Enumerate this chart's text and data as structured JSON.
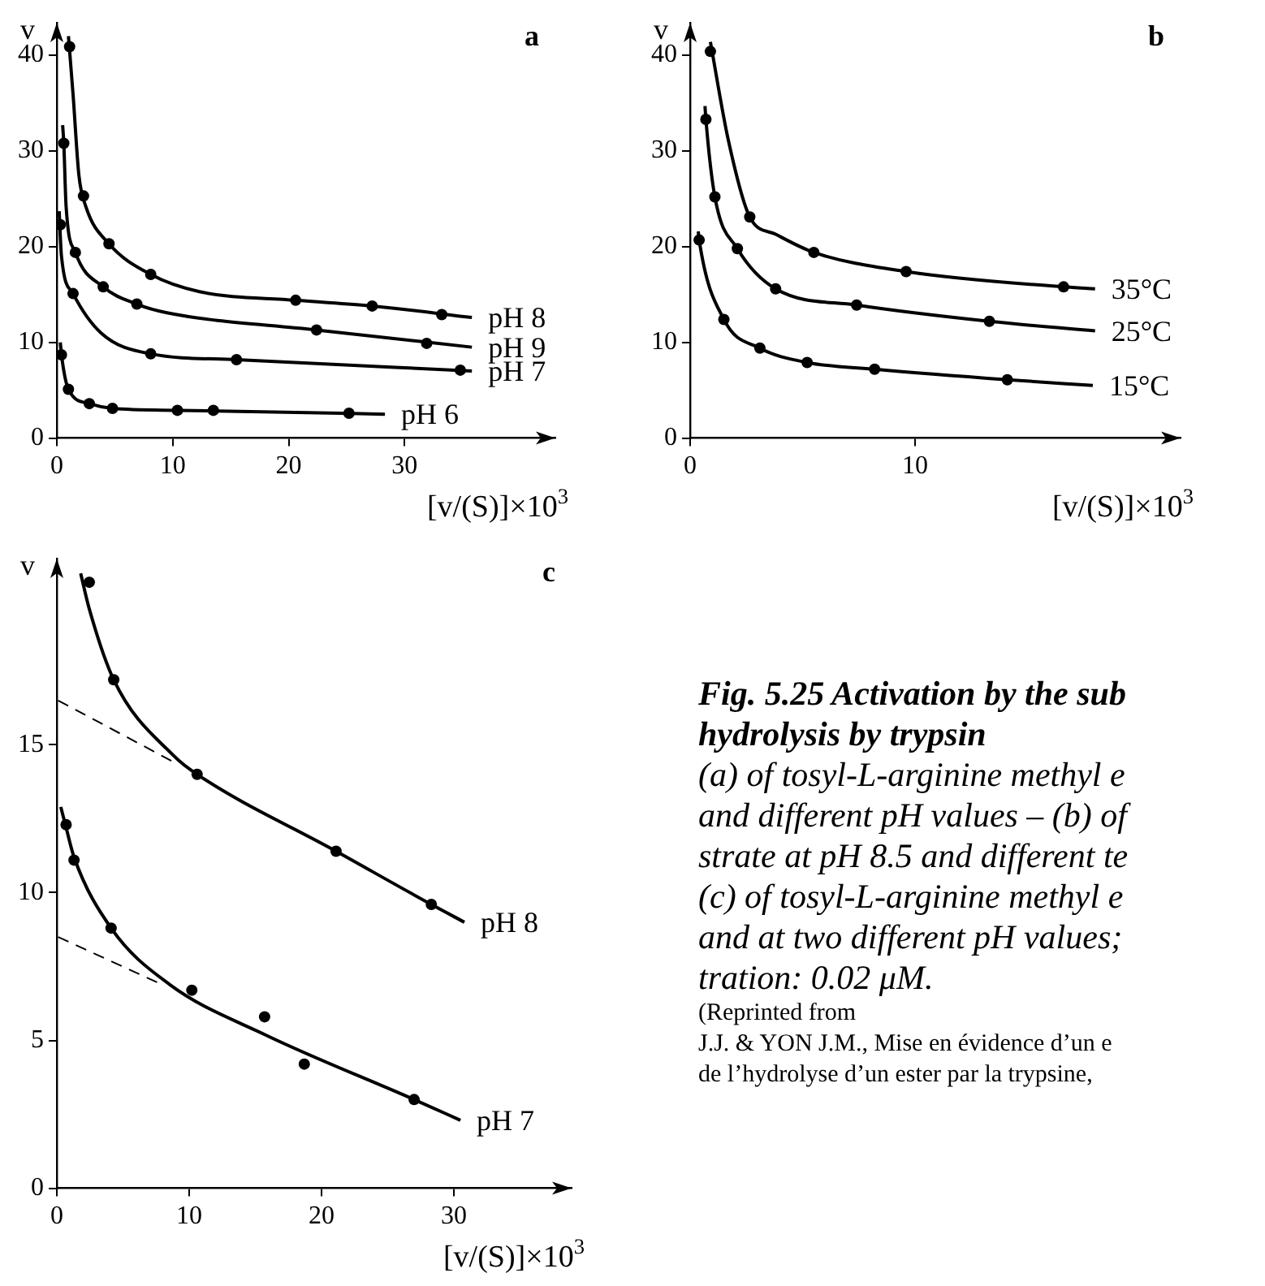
{
  "chart_data": [
    {
      "type": "line",
      "title": "a",
      "xlabel": "[v/(S)]×10$^{3}$",
      "ylabel": "v",
      "xlim": [
        0,
        43
      ],
      "ylim": [
        0,
        43.4
      ],
      "xticks": [
        0,
        10,
        20,
        30
      ],
      "yticks": [
        0,
        10,
        20,
        30,
        40
      ],
      "grid": false,
      "legend": false,
      "series": [
        {
          "name": "pH 8",
          "type": "line",
          "marker": "none",
          "color": "#000000",
          "x": [
            1.0,
            1.4,
            1.9,
            2.5,
            4.5,
            8.1,
            12.3,
            20.6,
            27.2,
            35.8
          ],
          "values": [
            42.0,
            35.9,
            27.5,
            24.2,
            20.3,
            17.1,
            15.3,
            14.4,
            13.8,
            12.6
          ]
        },
        {
          "type": "scatter",
          "marker": "circle",
          "color": "#000000",
          "x": [
            1.1,
            2.3,
            4.5,
            8.1,
            20.6,
            27.2,
            33.2
          ],
          "values": [
            40.9,
            25.3,
            20.3,
            17.1,
            14.4,
            13.8,
            12.9
          ]
        },
        {
          "name": "pH 9",
          "type": "line",
          "marker": "none",
          "color": "#000000",
          "x": [
            0.5,
            0.6,
            0.8,
            1.6,
            4.0,
            6.9,
            9.5,
            22.4,
            35.8
          ],
          "values": [
            32.7,
            30.8,
            24.2,
            19.4,
            15.8,
            14.0,
            13.1,
            11.3,
            9.5
          ]
        },
        {
          "type": "scatter",
          "marker": "circle",
          "color": "#000000",
          "x": [
            0.6,
            1.6,
            4.0,
            6.9,
            22.4,
            31.9
          ],
          "values": [
            30.8,
            19.4,
            15.8,
            14.0,
            11.3,
            9.9
          ]
        },
        {
          "name": "pH 7",
          "type": "line",
          "marker": "none",
          "color": "#000000",
          "x": [
            0.2,
            0.4,
            1.4,
            3.8,
            8.1,
            15.5,
            35.8
          ],
          "values": [
            23.7,
            19.0,
            15.1,
            11.0,
            8.8,
            8.2,
            7.0
          ]
        },
        {
          "type": "scatter",
          "marker": "circle",
          "color": "#000000",
          "x": [
            0.3,
            1.4,
            8.1,
            15.5,
            34.8
          ],
          "values": [
            22.3,
            15.1,
            8.8,
            8.2,
            7.1
          ]
        },
        {
          "name": "pH 6",
          "type": "line",
          "marker": "none",
          "color": "#000000",
          "x": [
            0.3,
            0.4,
            1.0,
            2.8,
            4.8,
            10.4,
            28.3
          ],
          "values": [
            10.0,
            8.7,
            5.1,
            3.6,
            3.1,
            2.9,
            2.5
          ]
        },
        {
          "type": "scatter",
          "marker": "circle",
          "color": "#000000",
          "x": [
            0.4,
            1.0,
            2.8,
            4.8,
            10.4,
            13.5,
            25.2
          ],
          "values": [
            8.7,
            5.1,
            3.6,
            3.1,
            2.9,
            2.9,
            2.6
          ]
        }
      ]
    },
    {
      "type": "line",
      "title": "b",
      "xlabel": "[v/(S)]×10$^{3}$",
      "ylabel": "v",
      "xlim": [
        0,
        21.8
      ],
      "ylim": [
        0,
        43.4
      ],
      "xticks": [
        0,
        10
      ],
      "yticks": [
        0,
        10,
        20,
        30,
        40
      ],
      "grid": false,
      "legend": false,
      "series": [
        {
          "name": "35°C",
          "type": "line",
          "marker": "none",
          "color": "#000000",
          "x": [
            0.9,
            1.7,
            2.65,
            3.8,
            5.5,
            9.6,
            16.6,
            18.0
          ],
          "values": [
            41.4,
            31.1,
            23.1,
            21.3,
            19.4,
            17.4,
            15.8,
            15.6
          ]
        },
        {
          "type": "scatter",
          "marker": "circle",
          "color": "#000000",
          "x": [
            0.9,
            2.65,
            5.5,
            9.6,
            16.6
          ],
          "values": [
            40.4,
            23.1,
            19.4,
            17.4,
            15.8
          ]
        },
        {
          "name": "25°C",
          "type": "line",
          "marker": "none",
          "color": "#000000",
          "x": [
            0.66,
            0.7,
            1.1,
            2.1,
            3.8,
            7.4,
            13.3,
            18.0
          ],
          "values": [
            34.7,
            33.3,
            25.2,
            19.8,
            15.6,
            13.9,
            12.2,
            11.2
          ]
        },
        {
          "type": "scatter",
          "marker": "circle",
          "color": "#000000",
          "x": [
            0.7,
            1.1,
            2.1,
            3.8,
            7.4,
            13.3
          ],
          "values": [
            33.3,
            25.2,
            19.8,
            15.6,
            13.9,
            12.2
          ]
        },
        {
          "name": "15°C",
          "type": "line",
          "marker": "none",
          "color": "#000000",
          "x": [
            0.36,
            0.4,
            1.5,
            3.1,
            5.2,
            8.2,
            14.1,
            17.9
          ],
          "values": [
            21.6,
            20.7,
            12.4,
            9.4,
            7.9,
            7.2,
            6.1,
            5.5
          ]
        },
        {
          "type": "scatter",
          "marker": "circle",
          "color": "#000000",
          "x": [
            0.4,
            1.5,
            3.1,
            5.2,
            8.2,
            14.1
          ],
          "values": [
            20.7,
            12.4,
            9.4,
            7.9,
            7.2,
            6.1
          ]
        }
      ]
    },
    {
      "type": "line",
      "title": "c",
      "xlabel": "[v/(S)]×10$^{3}$",
      "ylabel": "v",
      "xlim": [
        0,
        38.9
      ],
      "ylim": [
        0,
        21.3
      ],
      "xticks": [
        0,
        10,
        20,
        30
      ],
      "yticks": [
        0,
        5,
        10,
        15
      ],
      "grid": false,
      "legend": false,
      "series": [
        {
          "name": "pH 8",
          "type": "line",
          "marker": "none",
          "color": "#000000",
          "x": [
            1.8,
            2.45,
            4.3,
            8.9,
            10.6,
            21.1,
            28.3,
            30.8
          ],
          "values": [
            20.8,
            19.6,
            17.2,
            14.6,
            14.0,
            11.4,
            9.6,
            9.0
          ]
        },
        {
          "type": "line",
          "marker": "none",
          "line_style": "dashed",
          "color": "#000000",
          "x": [
            0.1,
            8.9
          ],
          "values": [
            16.5,
            14.4
          ]
        },
        {
          "type": "scatter",
          "marker": "circle",
          "color": "#000000",
          "x": [
            2.45,
            4.3,
            10.6,
            21.1,
            28.3
          ],
          "values": [
            20.5,
            17.2,
            14.0,
            11.4,
            9.6
          ]
        },
        {
          "name": "pH 7",
          "type": "line",
          "marker": "none",
          "color": "#000000",
          "x": [
            0.3,
            0.7,
            1.3,
            4.1,
            8.5,
            15.7,
            27.0,
            30.5
          ],
          "values": [
            12.9,
            12.2,
            11.2,
            8.8,
            6.9,
            5.2,
            3.0,
            2.3
          ]
        },
        {
          "type": "line",
          "marker": "none",
          "line_style": "dashed",
          "color": "#000000",
          "x": [
            0.1,
            7.9
          ],
          "values": [
            8.5,
            6.9
          ]
        },
        {
          "type": "scatter",
          "marker": "circle",
          "color": "#000000",
          "x": [
            0.7,
            1.3,
            4.1,
            10.2,
            15.7,
            18.7,
            27.0
          ],
          "values": [
            12.3,
            11.1,
            8.8,
            6.7,
            5.8,
            4.2,
            3.0
          ]
        }
      ]
    },
    {
      "type": "other",
      "title": "Fig. 5.25 Activation by the sub\nhydrolysis by trypsin",
      "subtitle": "(a) of tosyl-L-arginine methyl e\nand different pH values – (b) of\nstrate at pH 8.5 and different te\n(c) of tosyl-L-arginine methyl e\nand at two different pH values;\ntration: 0.02 μM.",
      "annotations": [
        "(Reprinted from",
        "J.J. & YON J.M., Mise en évidence d’un e",
        "de l’hydrolyse d’un ester par la trypsine,"
      ]
    }
  ]
}
